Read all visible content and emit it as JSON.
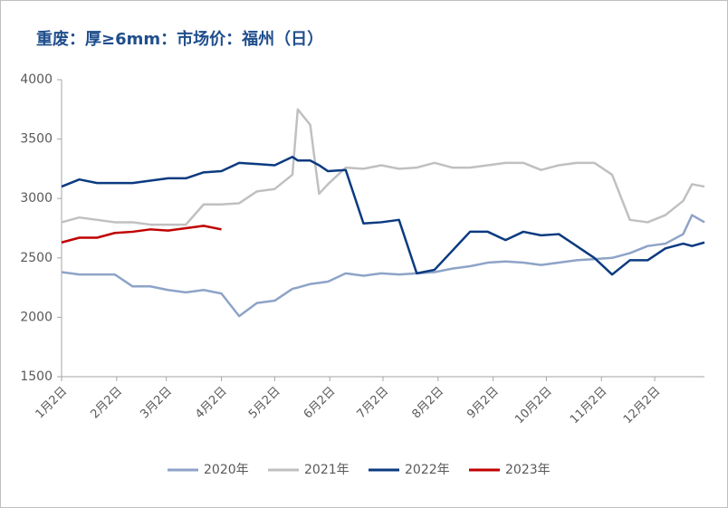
{
  "chart_data": {
    "type": "line",
    "title": "重废：厚≥6mm：市场价：福州（日）",
    "x": [
      0,
      10,
      20,
      30,
      40,
      50,
      60,
      70,
      80,
      90,
      100,
      110,
      120,
      130,
      133,
      140,
      145,
      150,
      160,
      170,
      180,
      190,
      200,
      210,
      220,
      230,
      240,
      250,
      260,
      270,
      280,
      290,
      300,
      310,
      320,
      330,
      340,
      350,
      355,
      362
    ],
    "xlim": [
      0,
      362
    ],
    "xticks": [
      {
        "value": 0,
        "label": "1月2日"
      },
      {
        "value": 31,
        "label": "2月2日"
      },
      {
        "value": 59,
        "label": "3月2日"
      },
      {
        "value": 90,
        "label": "4月2日"
      },
      {
        "value": 120,
        "label": "5月2日"
      },
      {
        "value": 151,
        "label": "6月2日"
      },
      {
        "value": 181,
        "label": "7月2日"
      },
      {
        "value": 212,
        "label": "8月2日"
      },
      {
        "value": 243,
        "label": "9月2日"
      },
      {
        "value": 273,
        "label": "10月2日"
      },
      {
        "value": 304,
        "label": "11月2日"
      },
      {
        "value": 334,
        "label": "12月2日"
      }
    ],
    "ylim": [
      1500,
      4000
    ],
    "yticks": [
      1500,
      2000,
      2500,
      3000,
      3500,
      4000
    ],
    "legend": "bottom",
    "series": [
      {
        "name": "2020年",
        "color": "#8ea3c8",
        "values": [
          2380,
          2360,
          2360,
          2360,
          2260,
          2260,
          2230,
          2210,
          2230,
          2200,
          2010,
          2120,
          2140,
          2240,
          2250,
          2280,
          2290,
          2300,
          2370,
          2350,
          2370,
          2360,
          2370,
          2380,
          2410,
          2430,
          2460,
          2470,
          2460,
          2440,
          2460,
          2480,
          2490,
          2500,
          2540,
          2600,
          2620,
          2700,
          2860,
          2800
        ]
      },
      {
        "name": "2021年",
        "color": "#c0c0c0",
        "values": [
          2800,
          2840,
          2820,
          2800,
          2800,
          2780,
          2780,
          2780,
          2950,
          2950,
          2960,
          3060,
          3080,
          3200,
          3750,
          3620,
          3040,
          3120,
          3260,
          3250,
          3280,
          3250,
          3260,
          3300,
          3260,
          3260,
          3280,
          3300,
          3300,
          3240,
          3280,
          3300,
          3300,
          3200,
          2820,
          2800,
          2860,
          2980,
          3120,
          3100
        ]
      },
      {
        "name": "2022年",
        "color": "#0b3a80",
        "values": [
          3100,
          3160,
          3130,
          3130,
          3130,
          3150,
          3170,
          3170,
          3220,
          3230,
          3300,
          3290,
          3280,
          3350,
          3320,
          3320,
          3280,
          3230,
          3240,
          2790,
          2800,
          2820,
          2370,
          2400,
          2560,
          2720,
          2720,
          2650,
          2720,
          2690,
          2700,
          2600,
          2500,
          2360,
          2480,
          2480,
          2580,
          2620,
          2600,
          2630
        ]
      },
      {
        "name": "2023年",
        "color": "#c00000",
        "values": [
          2630,
          2670,
          2670,
          2710,
          2720,
          2740,
          2730,
          2750,
          2770,
          2740,
          null,
          null,
          null,
          null,
          null,
          null,
          null,
          null,
          null,
          null,
          null,
          null,
          null,
          null,
          null,
          null,
          null,
          null,
          null,
          null,
          null,
          null,
          null,
          null,
          null,
          null,
          null,
          null,
          null,
          null
        ]
      }
    ]
  }
}
